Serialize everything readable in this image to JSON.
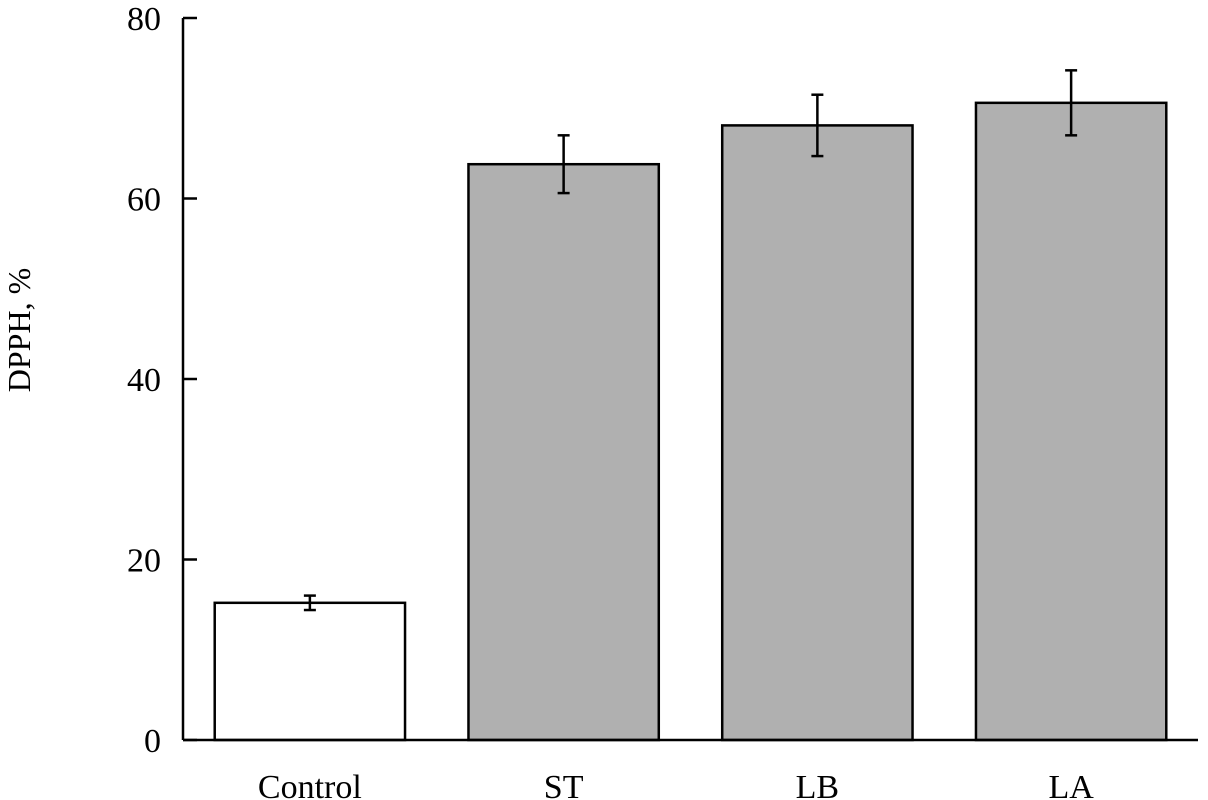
{
  "chart_data": {
    "type": "bar",
    "title": "",
    "xlabel": "",
    "ylabel": "DPPH, %",
    "categories": [
      "Control",
      "ST",
      "LB",
      "LA"
    ],
    "values": [
      15.2,
      63.8,
      68.1,
      70.6
    ],
    "errors": [
      0.8,
      3.2,
      3.4,
      3.6
    ],
    "ylim": [
      0,
      80
    ],
    "yticks": [
      0,
      20,
      40,
      60,
      80
    ],
    "grid": false,
    "legend": "none",
    "bar_colors": [
      "#ffffff",
      "#b0b0b0",
      "#b0b0b0",
      "#b0b0b0"
    ],
    "edge_color": "#000000"
  }
}
